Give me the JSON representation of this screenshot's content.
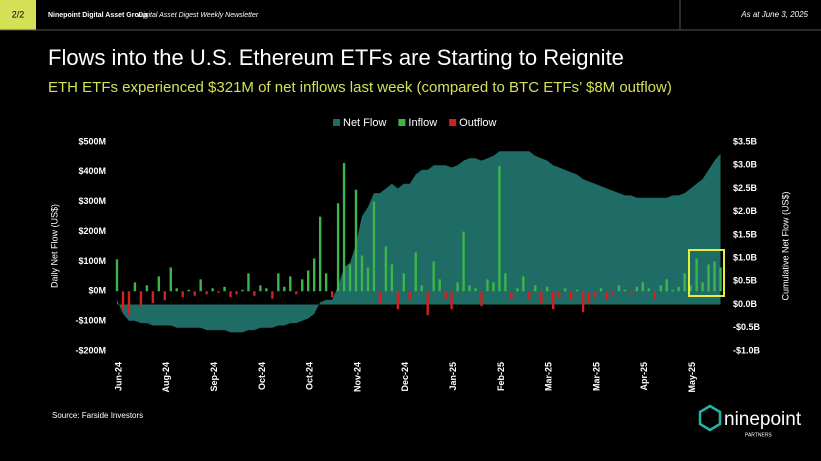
{
  "header": {
    "page": "2/2",
    "group": "Ninepoint Digital Asset Group",
    "newsletter": "Digital Asset Digest Weekly Newsletter",
    "date": "As at June 3, 2025"
  },
  "source": "Source: Farside Investors",
  "logo": {
    "name": "ninepoint",
    "sub": "PARTNERS"
  },
  "chart_data": {
    "type": "bar",
    "title": "Flows into the U.S. Ethereum ETFs are Starting to Reignite",
    "subtitle": "ETH ETFs experienced $321M of net inflows last week (compared to BTC ETFs’ $8M outflow)",
    "ylabel": "Daily Net Flow (US$)",
    "y2label": "Cumulative Net Flow (US$)",
    "categories": [
      "Jun-24",
      null,
      null,
      null,
      null,
      null,
      null,
      null,
      "Aug-24",
      null,
      null,
      null,
      null,
      null,
      null,
      null,
      "Sep-24",
      null,
      null,
      null,
      null,
      null,
      null,
      null,
      "Oct-24",
      null,
      null,
      null,
      null,
      null,
      null,
      null,
      "Oct-24",
      null,
      null,
      null,
      null,
      null,
      null,
      null,
      "Nov-24",
      null,
      null,
      null,
      null,
      null,
      null,
      null,
      "Dec-24",
      null,
      null,
      null,
      null,
      null,
      null,
      null,
      "Jan-25",
      null,
      null,
      null,
      null,
      null,
      null,
      null,
      "Feb-25",
      null,
      null,
      null,
      null,
      null,
      null,
      null,
      "Mar-25",
      null,
      null,
      null,
      null,
      null,
      null,
      null,
      "Mar-25",
      null,
      null,
      null,
      null,
      null,
      null,
      null,
      "Apr-25",
      null,
      null,
      null,
      null,
      null,
      null,
      null,
      "May-25",
      null,
      null,
      null,
      null,
      null
    ],
    "series": [
      {
        "name": "Net Flow",
        "color": "#1f6b66",
        "axis": "y2",
        "values": [
          0.1,
          -0.2,
          -0.35,
          -0.35,
          -0.4,
          -0.4,
          -0.45,
          -0.45,
          -0.45,
          -0.45,
          -0.5,
          -0.5,
          -0.5,
          -0.5,
          -0.5,
          -0.55,
          -0.55,
          -0.55,
          -0.55,
          -0.6,
          -0.6,
          -0.6,
          -0.55,
          -0.55,
          -0.5,
          -0.5,
          -0.5,
          -0.45,
          -0.45,
          -0.4,
          -0.4,
          -0.35,
          -0.3,
          -0.2,
          0.05,
          0.1,
          0.1,
          0.4,
          0.8,
          0.9,
          1.3,
          1.9,
          2.1,
          2.4,
          2.4,
          2.5,
          2.6,
          2.5,
          2.6,
          2.6,
          2.8,
          2.9,
          2.9,
          3.0,
          3.0,
          3.0,
          2.95,
          3.0,
          3.1,
          3.15,
          3.15,
          3.1,
          3.15,
          3.2,
          3.3,
          3.3,
          3.3,
          3.3,
          3.3,
          3.3,
          3.2,
          3.15,
          3.1,
          3.0,
          2.95,
          2.9,
          2.85,
          2.8,
          2.7,
          2.65,
          2.6,
          2.55,
          2.5,
          2.45,
          2.4,
          2.35,
          2.35,
          2.3,
          2.3,
          2.3,
          2.3,
          2.3,
          2.3,
          2.35,
          2.35,
          2.4,
          2.5,
          2.6,
          2.7,
          2.9,
          3.1,
          3.25
        ]
      },
      {
        "name": "Inflow",
        "color": "#3cb54a",
        "values": [
          107,
          null,
          null,
          30,
          null,
          20,
          null,
          50,
          null,
          80,
          10,
          null,
          5,
          null,
          40,
          null,
          10,
          null,
          15,
          null,
          null,
          5,
          60,
          null,
          20,
          10,
          null,
          60,
          15,
          50,
          null,
          40,
          70,
          110,
          250,
          60,
          null,
          295,
          430,
          90,
          340,
          120,
          80,
          300,
          null,
          150,
          90,
          null,
          60,
          null,
          130,
          20,
          null,
          100,
          40,
          null,
          null,
          30,
          200,
          20,
          10,
          null,
          40,
          30,
          420,
          60,
          null,
          10,
          50,
          null,
          20,
          null,
          15,
          null,
          null,
          10,
          null,
          5,
          null,
          null,
          null,
          10,
          null,
          null,
          20,
          5,
          null,
          15,
          30,
          10,
          null,
          20,
          40,
          5,
          15,
          60,
          20,
          110,
          30,
          90,
          100,
          80
        ]
      },
      {
        "name": "Outflow",
        "color": "#d4201f",
        "values": [
          null,
          -60,
          -80,
          null,
          -50,
          null,
          -40,
          null,
          -30,
          null,
          null,
          -20,
          null,
          -15,
          null,
          -10,
          null,
          -5,
          null,
          -20,
          -10,
          null,
          null,
          -15,
          null,
          null,
          -25,
          null,
          null,
          null,
          -10,
          null,
          null,
          null,
          null,
          null,
          -20,
          null,
          null,
          null,
          null,
          null,
          null,
          null,
          -40,
          null,
          null,
          -60,
          null,
          -30,
          null,
          null,
          -80,
          null,
          null,
          -25,
          -60,
          null,
          null,
          null,
          null,
          -50,
          null,
          null,
          null,
          null,
          -25,
          null,
          null,
          -30,
          null,
          -40,
          null,
          -60,
          -20,
          null,
          -30,
          null,
          -70,
          -40,
          -20,
          null,
          -30,
          -15,
          null,
          null,
          -10,
          null,
          null,
          null,
          -25,
          null,
          null,
          null,
          null,
          null,
          null,
          null,
          null,
          null,
          null,
          null
        ]
      }
    ],
    "ylim": [
      -200,
      500
    ],
    "yticks": [
      {
        "value": -200,
        "label": "-$200M"
      },
      {
        "value": -100,
        "label": "-$100M"
      },
      {
        "value": 0,
        "label": "$0M"
      },
      {
        "value": 100,
        "label": "$100M"
      },
      {
        "value": 200,
        "label": "$200M"
      },
      {
        "value": 300,
        "label": "$300M"
      },
      {
        "value": 400,
        "label": "$400M"
      },
      {
        "value": 500,
        "label": "$500M"
      }
    ],
    "y2lim": [
      -1,
      3.5
    ],
    "y2ticks": [
      {
        "value": -1,
        "label": "-$1.0B"
      },
      {
        "value": -0.5,
        "label": "-$0.5B"
      },
      {
        "value": 0,
        "label": "$0.0B"
      },
      {
        "value": 0.5,
        "label": "$0.5B"
      },
      {
        "value": 1,
        "label": "$1.0B"
      },
      {
        "value": 1.5,
        "label": "$1.5B"
      },
      {
        "value": 2,
        "label": "$2.0B"
      },
      {
        "value": 2.5,
        "label": "$2.5B"
      },
      {
        "value": 3,
        "label": "$3.0B"
      },
      {
        "value": 3.5,
        "label": "$3.5B"
      }
    ],
    "legend": "top"
  }
}
